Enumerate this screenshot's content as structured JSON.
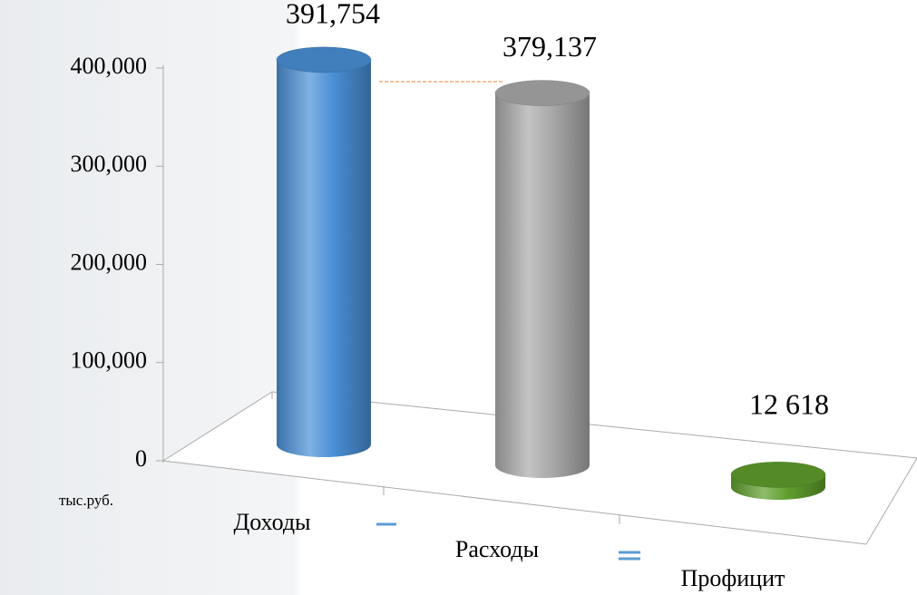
{
  "chart_data": {
    "type": "cylinder",
    "categories": [
      "Доходы",
      "Расходы",
      "Профицит"
    ],
    "values": [
      391754,
      379137,
      12618
    ],
    "value_labels": [
      "391,754",
      "379,137",
      "12 618"
    ],
    "colors": [
      "#4a8fd6",
      "#a9a9a9",
      "#5f9e2c"
    ],
    "y_label": "тыс.руб.",
    "ylim": [
      0,
      400000
    ],
    "yticks": [
      0,
      {
        "value": 100000,
        "label": "100,000"
      },
      {
        "value": 200000,
        "label": "200,000"
      },
      {
        "value": 300000,
        "label": "300,000"
      },
      {
        "value": 400000,
        "label": "400,000"
      }
    ]
  }
}
